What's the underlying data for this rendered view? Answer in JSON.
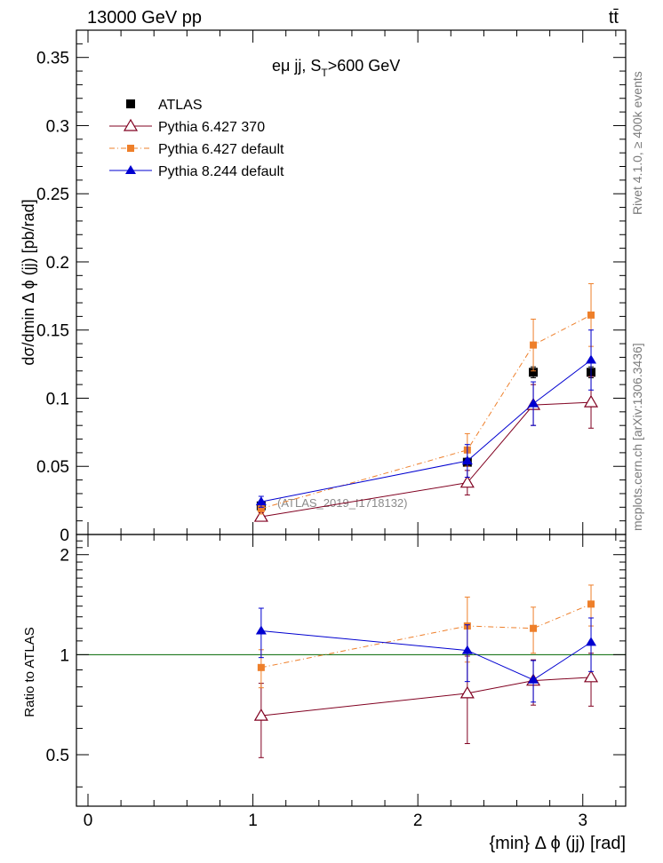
{
  "header": {
    "energy_label": "13000 GeV pp",
    "process_label": "tt̄"
  },
  "side_text": {
    "rivet": "Rivet 4.1.0, ≥ 400k events",
    "mcplots": "mcplots.cern.ch [arXiv:1306.3436]"
  },
  "chart_data": [
    {
      "type": "line",
      "panel": "main",
      "title": "eμ jj, S_T>600 GeV",
      "title_main": "eμ jj, S",
      "title_sub": "T",
      "title_tail": ">600 GeV",
      "ylabel": "dσ/dmin Δ ϕ (jj) [pb/rad]",
      "xlim": [
        -0.07,
        3.26
      ],
      "ylim": [
        0,
        0.37
      ],
      "yticks": [
        0,
        0.05,
        0.1,
        0.15,
        0.2,
        0.25,
        0.3,
        0.35
      ],
      "ytick_labels": [
        "0",
        "0.05",
        "0.1",
        "0.15",
        "0.2",
        "0.25",
        "0.3",
        "0.35"
      ],
      "watermark": "(ATLAS_2019_I1718132)",
      "legend_position": "top-left",
      "series": [
        {
          "name": "ATLAS",
          "color": "#000000",
          "marker": "square",
          "x": [
            1.05,
            2.3,
            2.7,
            3.05
          ],
          "y": [
            0.021,
            0.053,
            0.119,
            0.119
          ],
          "err": [
            0.002,
            0.003,
            0.004,
            0.004
          ]
        },
        {
          "name": "Pythia 6.427 370",
          "color": "#800020",
          "marker": "open-triangle",
          "line": "solid",
          "x": [
            1.05,
            2.3,
            2.7,
            3.05
          ],
          "y": [
            0.013,
            0.038,
            0.095,
            0.097
          ],
          "err": [
            0.003,
            0.009,
            0.015,
            0.019
          ]
        },
        {
          "name": "Pythia 6.427 default",
          "color": "#ee7f2a",
          "marker": "square-small",
          "line": "dashdot",
          "x": [
            1.05,
            2.3,
            2.7,
            3.05
          ],
          "y": [
            0.019,
            0.062,
            0.139,
            0.161
          ],
          "err": [
            0.004,
            0.012,
            0.019,
            0.023
          ]
        },
        {
          "name": "Pythia 8.244 default",
          "color": "#0000d0",
          "marker": "filled-triangle",
          "line": "solid",
          "x": [
            1.05,
            2.3,
            2.7,
            3.05
          ],
          "y": [
            0.024,
            0.054,
            0.096,
            0.128
          ],
          "err": [
            0.004,
            0.012,
            0.016,
            0.022
          ]
        }
      ]
    },
    {
      "type": "line",
      "panel": "ratio",
      "ylabel": "Ratio to ATLAS",
      "xlabel": "{min} Δ ϕ (jj) [rad]",
      "xlim": [
        -0.07,
        3.26
      ],
      "ylim": [
        0.35,
        2.3
      ],
      "yticks": [
        0.5,
        1,
        2
      ],
      "ytick_labels": [
        "0.5",
        "1",
        "2"
      ],
      "xticks": [
        0,
        1,
        2,
        3
      ],
      "xtick_labels": [
        "0",
        "1",
        "2",
        "3"
      ],
      "reference_line": 1,
      "series": [
        {
          "name": "Pythia 6.427 370",
          "color": "#800020",
          "marker": "open-triangle",
          "line": "solid",
          "x": [
            1.05,
            2.3,
            2.7,
            3.05
          ],
          "y": [
            0.655,
            0.765,
            0.835,
            0.855
          ],
          "err": [
            0.165,
            0.225,
            0.13,
            0.155
          ]
        },
        {
          "name": "Pythia 6.427 default",
          "color": "#ee7f2a",
          "marker": "square-small",
          "line": "dashdot",
          "x": [
            1.05,
            2.3,
            2.7,
            3.05
          ],
          "y": [
            0.915,
            1.22,
            1.2,
            1.42
          ],
          "err": [
            0.12,
            0.27,
            0.19,
            0.2
          ]
        },
        {
          "name": "Pythia 8.244 default",
          "color": "#0000d0",
          "marker": "filled-triangle",
          "line": "solid",
          "x": [
            1.05,
            2.3,
            2.7,
            3.05
          ],
          "y": [
            1.18,
            1.03,
            0.84,
            1.09
          ],
          "err": [
            0.2,
            0.2,
            0.12,
            0.2
          ]
        }
      ]
    }
  ]
}
